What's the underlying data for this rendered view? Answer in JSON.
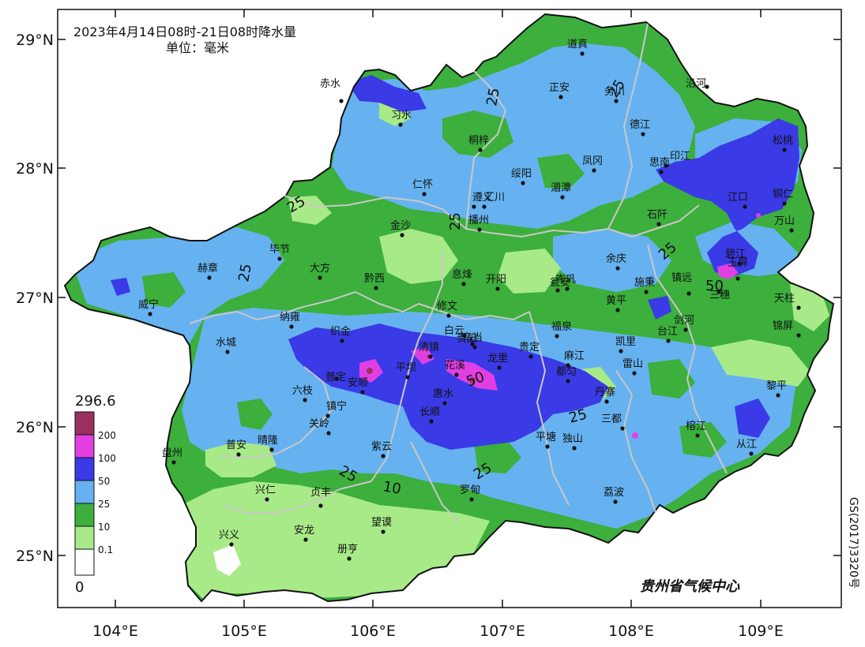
{
  "map": {
    "title": "2023年4月14日08时-21日08时降水量",
    "unit": "单位：毫米",
    "credit": "贵州省气候中心",
    "approval_code": "GS(2017)3320号",
    "lon_labels": [
      "104°E",
      "105°E",
      "106°E",
      "107°E",
      "108°E",
      "109°E"
    ],
    "lat_labels": [
      "29°N",
      "28°N",
      "27°N",
      "26°N",
      "25°N"
    ],
    "colors": {
      "c200": "#9a3060",
      "c100": "#e23fe2",
      "c50": "#3a3ae6",
      "c25": "#66b2f0",
      "c10": "#3caf3c",
      "c01": "#a8ea88",
      "c0": "#ffffff",
      "boundary": "#c8c8c8",
      "outline": "#111111"
    }
  },
  "legend": {
    "max_value": "296.6",
    "min_value": "0",
    "levels": [
      "200",
      "100",
      "50",
      "25",
      "10",
      "0.1"
    ]
  },
  "contour_labels": [
    "25",
    "25",
    "25",
    "25",
    "50",
    "25",
    "25",
    "25",
    "25",
    "10",
    "25",
    "50"
  ],
  "cities": [
    "道真",
    "沿河",
    "赤水",
    "正安",
    "务川",
    "习水",
    "德江",
    "桐梓",
    "印江",
    "松桃",
    "凤冈",
    "思南",
    "绥阳",
    "仁怀",
    "遵义",
    "湄潭",
    "铜仁",
    "江口",
    "汇川",
    "石阡",
    "万山",
    "金沙",
    "播州",
    "毕节",
    "大方",
    "赫章",
    "余庆",
    "碧江",
    "息烽",
    "开阳",
    "岑巩",
    "镇远",
    "黔西",
    "瓮安",
    "施秉",
    "玉屏",
    "威宁",
    "黄平",
    "三穗",
    "天柱",
    "纳雍",
    "修文",
    "福泉",
    "剑河",
    "台江",
    "锦屏",
    "白云",
    "织金",
    "乌当",
    "凯里",
    "水城",
    "清镇",
    "贵定",
    "麻江",
    "雷山",
    "花溪",
    "平坝",
    "龙里",
    "普定",
    "安顺",
    "都匀",
    "六枝",
    "惠水",
    "丹寨",
    "黎平",
    "镇宁",
    "长顺",
    "关岭",
    "榕江",
    "三都",
    "普安",
    "晴隆",
    "平塘",
    "独山",
    "紫云",
    "从江",
    "盘州",
    "兴仁",
    "贞丰",
    "罗甸",
    "荔波",
    "望谟",
    "安龙",
    "兴义",
    "册亨",
    "贵阳"
  ]
}
